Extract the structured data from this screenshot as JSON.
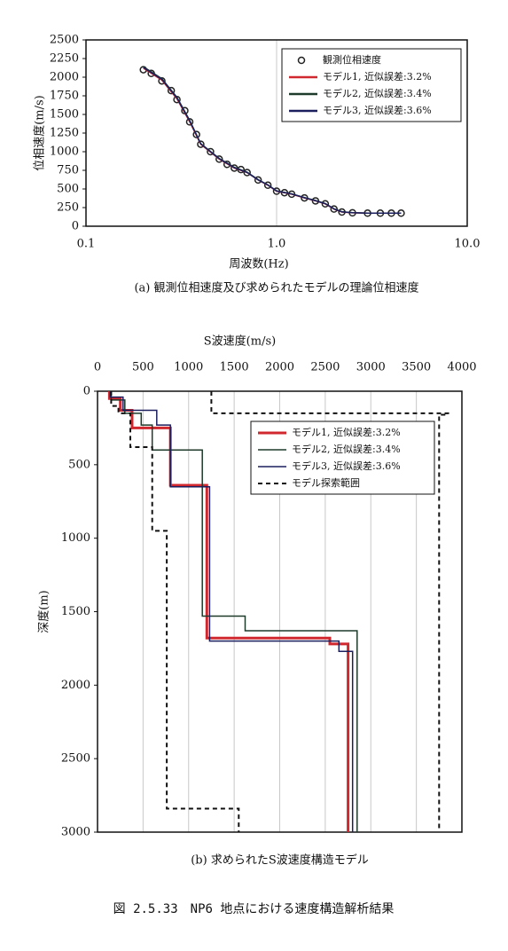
{
  "chart_data": [
    {
      "type": "line",
      "title": "(a) 観測位相速度及び求められたモデルの理論位相速度",
      "xlabel": "周波数(Hz)",
      "ylabel": "位相速度(m/s)",
      "xscale": "log",
      "xlim": [
        0.1,
        10
      ],
      "xticks": [
        0.1,
        {
          "value": 1,
          "label": "1.0"
        },
        {
          "value": 10,
          "label": "10.0"
        }
      ],
      "ylim": [
        0,
        2500
      ],
      "yticks": [
        0,
        250,
        500,
        750,
        1000,
        1250,
        1500,
        1750,
        2000,
        2250,
        2500
      ],
      "grid": true,
      "legend": "upper right",
      "series": [
        {
          "name": "観測位相速度",
          "mode": "markers",
          "color": "#222222",
          "x": [
            0.2,
            0.22,
            0.25,
            0.28,
            0.3,
            0.33,
            0.35,
            0.38,
            0.4,
            0.45,
            0.5,
            0.55,
            0.6,
            0.65,
            0.7,
            0.8,
            0.9,
            1.0,
            1.1,
            1.2,
            1.4,
            1.6,
            1.8,
            2.0,
            2.2,
            2.5,
            3.0,
            3.5,
            4.0,
            4.5
          ],
          "values": [
            2100,
            2050,
            1950,
            1820,
            1700,
            1550,
            1400,
            1230,
            1100,
            1000,
            900,
            830,
            780,
            760,
            720,
            620,
            550,
            470,
            450,
            430,
            380,
            340,
            300,
            230,
            190,
            180,
            175,
            175,
            175,
            175
          ]
        },
        {
          "name": "モデル1, 近似誤差:3.2%",
          "mode": "lines",
          "color": "#d0282e",
          "x": [
            0.2,
            0.25,
            0.3,
            0.35,
            0.4,
            0.5,
            0.6,
            0.7,
            0.8,
            0.9,
            1.0,
            1.2,
            1.4,
            1.6,
            1.8,
            2.0,
            2.2,
            2.5,
            3.0,
            4.5
          ],
          "values": [
            2120,
            1960,
            1710,
            1400,
            1100,
            900,
            780,
            720,
            620,
            550,
            470,
            430,
            380,
            340,
            300,
            230,
            190,
            180,
            175,
            175
          ]
        },
        {
          "name": "モデル2, 近似誤差:3.4%",
          "mode": "lines",
          "color": "#1d3a2a",
          "x": [
            0.2,
            0.25,
            0.3,
            0.35,
            0.4,
            0.5,
            0.6,
            0.7,
            0.8,
            0.9,
            1.0,
            1.2,
            1.4,
            1.6,
            1.8,
            2.0,
            2.2,
            2.5,
            3.0,
            4.5
          ],
          "values": [
            2140,
            1980,
            1730,
            1420,
            1110,
            910,
            790,
            725,
            625,
            555,
            475,
            435,
            385,
            345,
            305,
            235,
            195,
            182,
            176,
            176
          ]
        },
        {
          "name": "モデル3, 近似誤差:3.6%",
          "mode": "lines",
          "color": "#1c1f5e",
          "x": [
            0.2,
            0.25,
            0.3,
            0.35,
            0.4,
            0.5,
            0.6,
            0.7,
            0.8,
            0.9,
            1.0,
            1.2,
            1.4,
            1.6,
            1.8,
            2.0,
            2.2,
            2.5,
            3.0,
            4.5
          ],
          "values": [
            2130,
            1970,
            1720,
            1410,
            1105,
            905,
            785,
            722,
            622,
            552,
            472,
            432,
            382,
            342,
            302,
            232,
            192,
            181,
            175,
            175
          ]
        }
      ]
    },
    {
      "type": "line",
      "title": "(b) 求められたS波速度構造モデル",
      "xlabel": "S波速度(m/s)",
      "ylabel": "深度(m)",
      "xaxis_position": "top",
      "y_inverted": true,
      "xlim": [
        0,
        4000
      ],
      "xticks": [
        0,
        500,
        1000,
        1500,
        2000,
        2500,
        3000,
        3500,
        4000
      ],
      "ylim": [
        0,
        3000
      ],
      "yticks": [
        0,
        500,
        1000,
        1500,
        2000,
        2500,
        3000
      ],
      "grid": true,
      "legend": "upper right",
      "series": [
        {
          "name": "モデル1, 近似誤差:3.2%",
          "mode": "lines",
          "color": "#d0282e",
          "width": 3,
          "x": [
            130,
            130,
            250,
            250,
            380,
            380,
            800,
            800,
            1200,
            1200,
            2550,
            2550,
            2750,
            2750
          ],
          "values": [
            0,
            50,
            50,
            130,
            130,
            250,
            250,
            640,
            640,
            1680,
            1680,
            1720,
            1720,
            3000
          ]
        },
        {
          "name": "モデル2, 近似誤差:3.4%",
          "mode": "lines",
          "color": "#1d3a2a",
          "width": 1.5,
          "x": [
            150,
            150,
            300,
            300,
            480,
            480,
            600,
            600,
            1150,
            1150,
            1620,
            1620,
            2850,
            2850
          ],
          "values": [
            0,
            60,
            60,
            150,
            150,
            230,
            230,
            400,
            400,
            1530,
            1530,
            1630,
            1630,
            3000
          ]
        },
        {
          "name": "モデル3, 近似誤差:3.6%",
          "mode": "lines",
          "color": "#1c1f5e",
          "width": 1.5,
          "x": [
            140,
            140,
            280,
            280,
            650,
            650,
            800,
            800,
            1230,
            1230,
            2650,
            2650,
            2800,
            2800
          ],
          "values": [
            0,
            40,
            40,
            130,
            130,
            230,
            230,
            650,
            650,
            1700,
            1700,
            1770,
            1770,
            3000
          ]
        },
        {
          "name": "モデル探索範囲",
          "mode": "dashed",
          "color": "#111111",
          "width": 2,
          "x": [
            150,
            150,
            230,
            230,
            360,
            360,
            600,
            600,
            760,
            760,
            1550,
            1550,
            null,
            1250,
            1250,
            3850,
            3850,
            3750,
            3750
          ],
          "values": [
            0,
            100,
            100,
            150,
            150,
            380,
            380,
            950,
            950,
            2840,
            2840,
            3000,
            null,
            0,
            150,
            150,
            160,
            160,
            3000
          ]
        }
      ]
    }
  ],
  "caption": "図 2.5.33　NP6 地点における速度構造解析結果"
}
